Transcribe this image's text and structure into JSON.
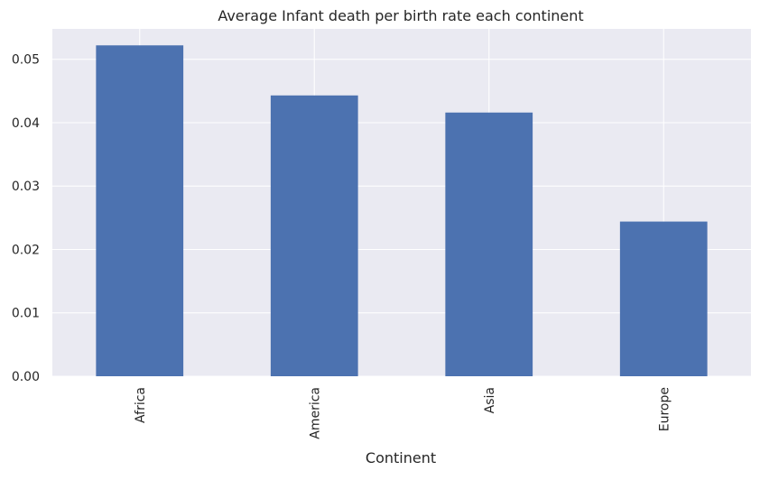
{
  "chart_data": {
    "type": "bar",
    "title": "Average Infant death per birth rate each continent",
    "xlabel": "Continent",
    "ylabel": "",
    "categories": [
      "Africa",
      "America",
      "Asia",
      "Europe"
    ],
    "values": [
      0.0522,
      0.0443,
      0.0416,
      0.0244
    ],
    "ylim": [
      0,
      0.0548
    ],
    "yticks": [
      "0.00",
      "0.01",
      "0.02",
      "0.03",
      "0.04",
      "0.05"
    ],
    "grid": true,
    "legend": "none",
    "colors": {
      "bar": "#4c72b0",
      "plot_background": "#eaeaf2",
      "grid": "#ffffff",
      "text": "#262626"
    }
  }
}
